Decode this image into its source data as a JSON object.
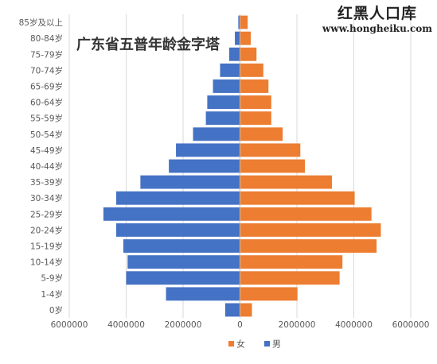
{
  "watermark": {
    "name": "红黑人口库",
    "url": "www.hongheiku.com"
  },
  "chart_data": {
    "type": "bar",
    "orientation": "horizontal",
    "title": "广东省五普年龄金字塔",
    "categories": [
      "0岁",
      "1-4岁",
      "5-9岁",
      "10-14岁",
      "15-19岁",
      "20-24岁",
      "25-29岁",
      "30-34岁",
      "35-39岁",
      "40-44岁",
      "45-49岁",
      "50-54岁",
      "55-59岁",
      "60-64岁",
      "65-69岁",
      "70-74岁",
      "75-79岁",
      "80-84岁",
      "85岁及以上"
    ],
    "series": [
      {
        "name": "男",
        "color": "#4472C4",
        "values": [
          520000,
          2600000,
          4000000,
          3950000,
          4100000,
          4350000,
          4800000,
          4350000,
          3500000,
          2500000,
          2250000,
          1650000,
          1200000,
          1150000,
          950000,
          700000,
          380000,
          180000,
          60000
        ]
      },
      {
        "name": "女",
        "color": "#ED7D31",
        "values": [
          420000,
          2020000,
          3500000,
          3600000,
          4800000,
          4950000,
          4620000,
          4030000,
          3230000,
          2280000,
          2120000,
          1500000,
          1100000,
          1100000,
          1000000,
          820000,
          580000,
          380000,
          270000
        ]
      }
    ],
    "xlim": [
      -6000000,
      6000000
    ],
    "xticks": [
      "6000000",
      "4000000",
      "2000000",
      "0",
      "2000000",
      "4000000",
      "6000000"
    ],
    "legend_position": "bottom",
    "legend": [
      {
        "label": "女",
        "color": "#ED7D31"
      },
      {
        "label": "男",
        "color": "#4472C4"
      }
    ],
    "grid": true
  }
}
